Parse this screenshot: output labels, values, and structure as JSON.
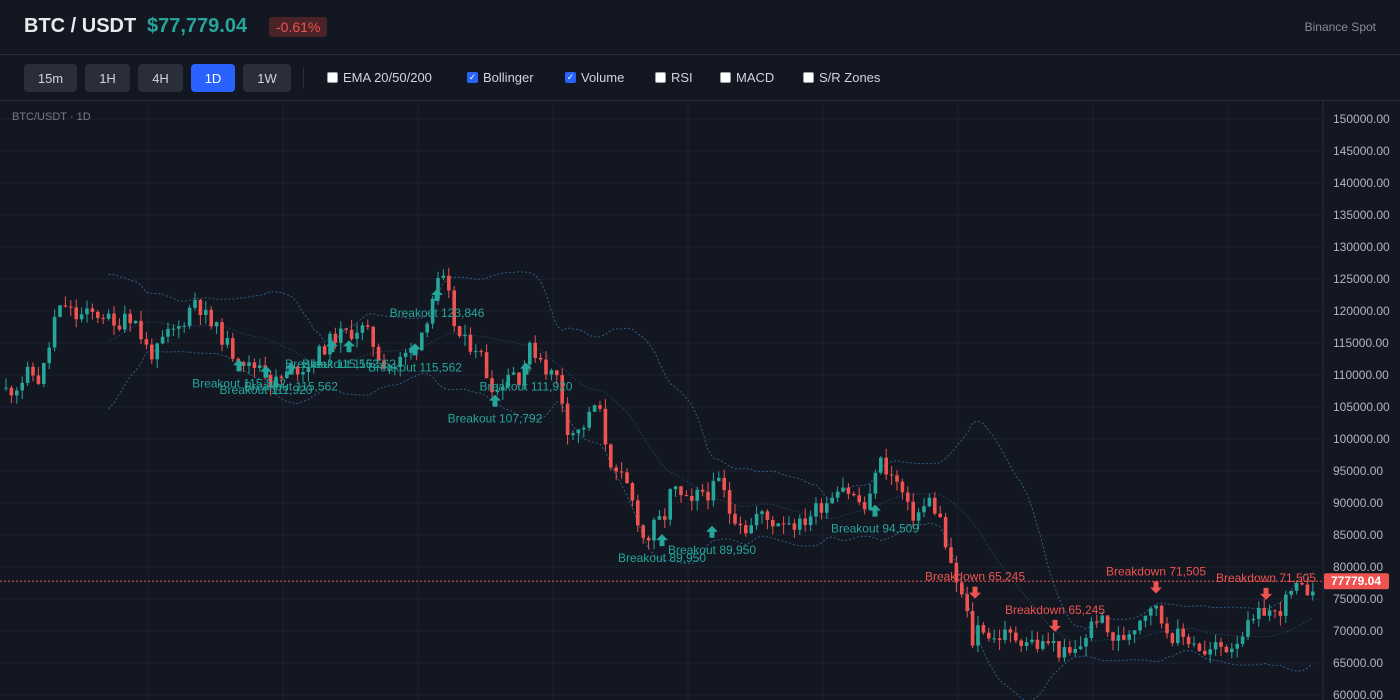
{
  "header": {
    "symbol": "BTC / USDT",
    "price": "$77,779.04",
    "change": "-0.61%",
    "exchange": "Binance Spot",
    "colors": {
      "up": "#26a69a",
      "down": "#ef5350",
      "accent": "#2962ff"
    }
  },
  "toolbar": {
    "timeframes": [
      {
        "label": "15m",
        "active": false
      },
      {
        "label": "1H",
        "active": false
      },
      {
        "label": "4H",
        "active": false
      },
      {
        "label": "1D",
        "active": true
      },
      {
        "label": "1W",
        "active": false
      }
    ],
    "indicators": [
      {
        "label": "EMA 20/50/200",
        "checked": false
      },
      {
        "label": "Bollinger",
        "checked": true
      },
      {
        "label": "Volume",
        "checked": true
      },
      {
        "label": "RSI",
        "checked": false
      },
      {
        "label": "MACD",
        "checked": false
      },
      {
        "label": "S/R Zones",
        "checked": false
      }
    ]
  },
  "chart_data": {
    "type": "candlestick",
    "title": "BTC/USDT · 1D",
    "ylim": [
      60000,
      151500
    ],
    "ticks": [
      150000,
      145000,
      140000,
      135000,
      130000,
      125000,
      120000,
      115000,
      110000,
      105000,
      100000,
      95000,
      90000,
      85000,
      80000,
      75000,
      70000,
      65000,
      60000
    ],
    "tick_labels": [
      "150000.00",
      "145000.00",
      "140000.00",
      "135000.00",
      "130000.00",
      "125000.00",
      "120000.00",
      "115000.00",
      "110000.00",
      "105000.00",
      "100000.00",
      "95000.00",
      "90000.00",
      "85000.00",
      "80000.00",
      "75000.00",
      "70000.00",
      "65000.00",
      "60000.00"
    ],
    "last_price": 77779.04,
    "last_price_label": "77779.04",
    "grid": true,
    "bollinger": true,
    "close_path": [
      [
        0,
        108000
      ],
      [
        8,
        107500
      ],
      [
        18,
        108500
      ],
      [
        30,
        110500
      ],
      [
        40,
        109000
      ],
      [
        48,
        113500
      ],
      [
        55,
        119000
      ],
      [
        65,
        121000
      ],
      [
        75,
        119000
      ],
      [
        90,
        119500
      ],
      [
        105,
        119500
      ],
      [
        115,
        117000
      ],
      [
        125,
        120000
      ],
      [
        135,
        118500
      ],
      [
        145,
        114500
      ],
      [
        155,
        113000
      ],
      [
        165,
        116000
      ],
      [
        180,
        117500
      ],
      [
        195,
        122000
      ],
      [
        210,
        118000
      ],
      [
        220,
        116500
      ],
      [
        232,
        113500
      ],
      [
        240,
        113000
      ],
      [
        250,
        111000
      ],
      [
        262,
        112000
      ],
      [
        272,
        108500
      ],
      [
        282,
        109500
      ],
      [
        295,
        111000
      ],
      [
        310,
        111500
      ],
      [
        322,
        114000
      ],
      [
        335,
        116000
      ],
      [
        348,
        116500
      ],
      [
        360,
        117500
      ],
      [
        370,
        116000
      ],
      [
        380,
        112500
      ],
      [
        392,
        111000
      ],
      [
        405,
        113000
      ],
      [
        415,
        114500
      ],
      [
        425,
        118000
      ],
      [
        435,
        123500
      ],
      [
        442,
        125000
      ],
      [
        450,
        121500
      ],
      [
        456,
        116500
      ],
      [
        465,
        115000
      ],
      [
        478,
        114500
      ],
      [
        488,
        109500
      ],
      [
        497,
        107500
      ],
      [
        510,
        111000
      ],
      [
        520,
        109500
      ],
      [
        528,
        114000
      ],
      [
        538,
        113500
      ],
      [
        548,
        110500
      ],
      [
        558,
        109500
      ],
      [
        568,
        101500
      ],
      [
        578,
        101000
      ],
      [
        588,
        103000
      ],
      [
        597,
        106000
      ],
      [
        605,
        100000
      ],
      [
        615,
        94000
      ],
      [
        625,
        93500
      ],
      [
        638,
        87500
      ],
      [
        645,
        83500
      ],
      [
        655,
        86500
      ],
      [
        665,
        88000
      ],
      [
        672,
        92500
      ],
      [
        682,
        90500
      ],
      [
        692,
        89500
      ],
      [
        700,
        92000
      ],
      [
        710,
        91500
      ],
      [
        720,
        93500
      ],
      [
        730,
        88500
      ],
      [
        740,
        87500
      ],
      [
        748,
        85500
      ],
      [
        758,
        88500
      ],
      [
        770,
        87000
      ],
      [
        785,
        87500
      ],
      [
        800,
        86500
      ],
      [
        815,
        89000
      ],
      [
        828,
        90500
      ],
      [
        840,
        93500
      ],
      [
        850,
        91500
      ],
      [
        860,
        90000
      ],
      [
        868,
        88500
      ],
      [
        875,
        95500
      ],
      [
        882,
        96500
      ],
      [
        892,
        94000
      ],
      [
        900,
        92500
      ],
      [
        910,
        88000
      ],
      [
        920,
        88500
      ],
      [
        930,
        90500
      ],
      [
        940,
        87500
      ],
      [
        950,
        80000
      ],
      [
        958,
        77000
      ],
      [
        966,
        73500
      ],
      [
        972,
        68000
      ],
      [
        980,
        71500
      ],
      [
        992,
        68500
      ],
      [
        1002,
        69500
      ],
      [
        1015,
        69000
      ],
      [
        1030,
        68500
      ],
      [
        1040,
        67500
      ],
      [
        1050,
        68500
      ],
      [
        1058,
        67000
      ],
      [
        1068,
        66000
      ],
      [
        1078,
        67000
      ],
      [
        1088,
        70000
      ],
      [
        1098,
        72500
      ],
      [
        1110,
        69000
      ],
      [
        1120,
        68500
      ],
      [
        1132,
        70500
      ],
      [
        1142,
        72500
      ],
      [
        1152,
        74500
      ],
      [
        1160,
        72000
      ],
      [
        1170,
        69500
      ],
      [
        1182,
        69000
      ],
      [
        1195,
        68500
      ],
      [
        1205,
        66000
      ],
      [
        1215,
        67500
      ],
      [
        1230,
        67500
      ],
      [
        1240,
        69500
      ],
      [
        1252,
        71000
      ],
      [
        1265,
        73500
      ],
      [
        1275,
        72500
      ],
      [
        1285,
        74500
      ],
      [
        1295,
        76500
      ],
      [
        1305,
        76000
      ],
      [
        1315,
        77780
      ]
    ],
    "signals": [
      {
        "type": "breakout",
        "x": 239,
        "price": 111500,
        "label": "Breakout 115,562"
      },
      {
        "type": "breakout",
        "x": 266,
        "price": 110500,
        "label": "Breakout 111,920"
      },
      {
        "type": "breakout",
        "x": 291,
        "price": 111000,
        "label": "Breakout 115,562"
      },
      {
        "type": "breakout",
        "x": 332,
        "price": 114500,
        "label": "Breakout 115,562"
      },
      {
        "type": "breakout",
        "x": 349,
        "price": 114500,
        "label": "Breakout 115,562"
      },
      {
        "type": "breakout",
        "x": 415,
        "price": 114000,
        "label": "Breakout 115,562"
      },
      {
        "type": "breakout",
        "x": 437,
        "price": 122500,
        "label": "Breakout 123,846"
      },
      {
        "type": "breakout",
        "x": 495,
        "price": 106000,
        "label": "Breakout 107,792"
      },
      {
        "type": "breakout",
        "x": 526,
        "price": 111000,
        "label": "Breakout 111,920"
      },
      {
        "type": "breakout",
        "x": 662,
        "price": 84200,
        "label": "Breakout 89,950"
      },
      {
        "type": "breakout",
        "x": 712,
        "price": 85500,
        "label": "Breakout 89,950"
      },
      {
        "type": "breakout",
        "x": 875,
        "price": 88800,
        "label": "Breakout 94,509"
      },
      {
        "type": "breakdown",
        "x": 975,
        "price": 76000,
        "label": "Breakdown 65,245"
      },
      {
        "type": "breakdown",
        "x": 1055,
        "price": 70800,
        "label": "Breakdown 65,245"
      },
      {
        "type": "breakdown",
        "x": 1156,
        "price": 76800,
        "label": "Breakdown 71,505"
      },
      {
        "type": "breakdown",
        "x": 1266,
        "price": 75800,
        "label": "Breakdown 71,505"
      }
    ]
  }
}
